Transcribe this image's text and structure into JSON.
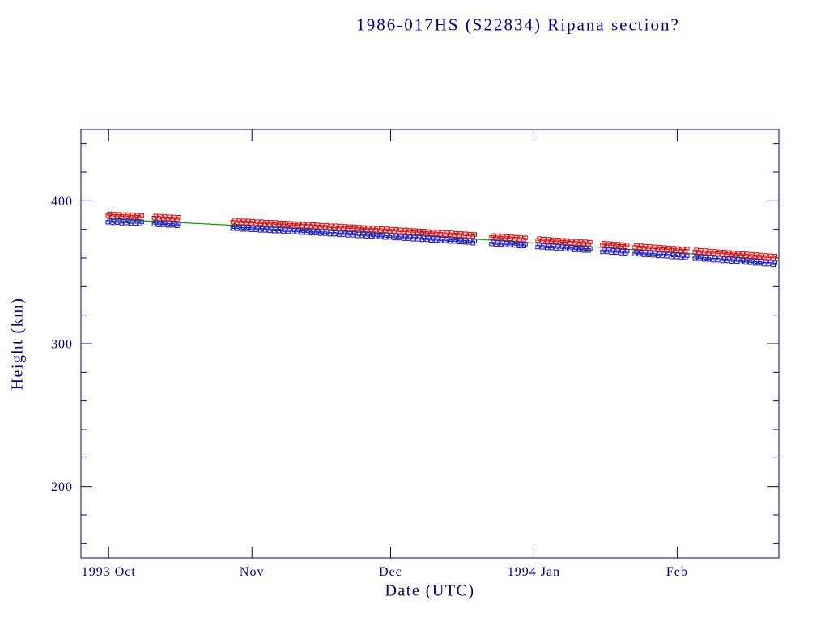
{
  "page": {
    "background": "#ffffff",
    "text_color": "#00008b"
  },
  "chart_data": {
    "type": "scatter",
    "title": "1986-017HS (S22834) Ripana section?",
    "xlabel": "Date (UTC)",
    "ylabel": "Height (km)",
    "x_axis": {
      "day0_date": "1993 Sep 25 (left edge of box)",
      "range_days": [
        0,
        151
      ],
      "ticks": [
        {
          "day": 6,
          "label": "1993 Oct"
        },
        {
          "day": 37,
          "label": "Nov"
        },
        {
          "day": 67,
          "label": "Dec"
        },
        {
          "day": 98,
          "label": "1994 Jan"
        },
        {
          "day": 129,
          "label": "Feb"
        }
      ]
    },
    "y_axis": {
      "range_km": [
        150,
        450
      ],
      "major_ticks": [
        200,
        300,
        400
      ],
      "minor_tick_step": 20
    },
    "colors": {
      "axis": "#00008b",
      "red_series": "#dd1111",
      "blue_series": "#2222cc",
      "trend": "#00aa00"
    },
    "series_meta": [
      {
        "name": "upper-height-series",
        "color_key": "red_series",
        "marker": "open-square"
      },
      {
        "name": "lower-height-series",
        "color_key": "blue_series",
        "marker": "open-square"
      }
    ],
    "points_per_day_spread_km": 1.4,
    "points": [
      [
        6,
        390.2,
        385.7
      ],
      [
        7,
        389.9,
        385.3
      ],
      [
        8,
        389.8,
        385.5
      ],
      [
        9,
        389.6,
        385.0
      ],
      [
        10,
        389.6,
        385.2
      ],
      [
        11,
        389.3,
        384.8
      ],
      [
        12,
        389.2,
        384.9
      ],
      [
        13,
        389.0,
        384.5
      ],
      [
        16,
        388.6,
        384.2
      ],
      [
        17,
        388.5,
        383.8
      ],
      [
        18,
        388.2,
        383.9
      ],
      [
        19,
        388.1,
        383.5
      ],
      [
        20,
        387.9,
        383.5
      ],
      [
        21,
        387.8,
        383.2
      ],
      [
        33,
        385.8,
        381.3
      ],
      [
        34,
        385.4,
        381.1
      ],
      [
        35,
        385.3,
        380.7
      ],
      [
        36,
        385.2,
        380.7
      ],
      [
        37,
        385.0,
        380.4
      ],
      [
        38,
        384.7,
        380.4
      ],
      [
        39,
        384.7,
        380.0
      ],
      [
        40,
        384.4,
        380.0
      ],
      [
        41,
        384.3,
        379.7
      ],
      [
        42,
        384.2,
        379.5
      ],
      [
        43,
        383.9,
        379.5
      ],
      [
        44,
        383.8,
        379.1
      ],
      [
        45,
        383.6,
        379.1
      ],
      [
        46,
        383.4,
        378.8
      ],
      [
        47,
        383.3,
        378.8
      ],
      [
        48,
        382.9,
        378.4
      ],
      [
        49,
        382.9,
        378.4
      ],
      [
        50,
        382.7,
        378.0
      ],
      [
        51,
        382.5,
        378.1
      ],
      [
        52,
        382.2,
        377.7
      ],
      [
        53,
        382.2,
        377.7
      ],
      [
        54,
        381.8,
        377.3
      ],
      [
        55,
        381.8,
        377.3
      ],
      [
        56,
        381.6,
        376.9
      ],
      [
        57,
        381.4,
        377.0
      ],
      [
        58,
        381.2,
        376.6
      ],
      [
        59,
        381.1,
        376.6
      ],
      [
        60,
        380.8,
        376.1
      ],
      [
        61,
        380.6,
        376.2
      ],
      [
        62,
        380.4,
        375.8
      ],
      [
        63,
        380.3,
        375.8
      ],
      [
        64,
        380.1,
        375.4
      ],
      [
        65,
        379.8,
        375.4
      ],
      [
        66,
        379.7,
        375.0
      ],
      [
        67,
        379.4,
        375.1
      ],
      [
        68,
        379.3,
        374.6
      ],
      [
        69,
        379.0,
        374.6
      ],
      [
        70,
        378.9,
        374.2
      ],
      [
        71,
        378.6,
        374.2
      ],
      [
        72,
        378.5,
        373.8
      ],
      [
        73,
        378.2,
        373.8
      ],
      [
        74,
        378.1,
        373.4
      ],
      [
        75,
        377.8,
        373.4
      ],
      [
        76,
        377.6,
        373.0
      ],
      [
        77,
        377.5,
        373.0
      ],
      [
        78,
        377.2,
        372.6
      ],
      [
        79,
        377.0,
        372.6
      ],
      [
        80,
        376.9,
        372.2
      ],
      [
        81,
        376.6,
        372.2
      ],
      [
        82,
        376.4,
        371.8
      ],
      [
        83,
        376.2,
        371.7
      ],
      [
        84,
        375.9,
        371.5
      ],
      [
        85,
        375.7,
        371.1
      ],
      [
        89,
        375.0,
        370.5
      ],
      [
        90,
        374.8,
        370.1
      ],
      [
        91,
        374.5,
        370.1
      ],
      [
        92,
        374.3,
        369.7
      ],
      [
        93,
        374.1,
        369.6
      ],
      [
        94,
        373.8,
        369.4
      ],
      [
        95,
        373.7,
        369.0
      ],
      [
        96,
        373.4,
        369.0
      ],
      [
        99,
        372.8,
        368.3
      ],
      [
        100,
        372.5,
        368.1
      ],
      [
        101,
        372.4,
        367.7
      ],
      [
        102,
        372.1,
        367.7
      ],
      [
        103,
        371.9,
        367.3
      ],
      [
        104,
        371.6,
        367.2
      ],
      [
        105,
        371.5,
        366.8
      ],
      [
        106,
        371.1,
        366.7
      ],
      [
        107,
        371.0,
        366.3
      ],
      [
        108,
        370.7,
        366.3
      ],
      [
        109,
        370.6,
        365.9
      ],
      [
        110,
        370.3,
        365.9
      ],
      [
        113,
        369.7,
        365.0
      ],
      [
        114,
        369.4,
        365.0
      ],
      [
        115,
        369.2,
        364.5
      ],
      [
        116,
        368.9,
        364.5
      ],
      [
        117,
        368.7,
        364.1
      ],
      [
        118,
        368.5,
        364.0
      ],
      [
        120,
        368.1,
        363.4
      ],
      [
        121,
        367.8,
        363.3
      ],
      [
        122,
        367.5,
        362.9
      ],
      [
        123,
        367.3,
        362.8
      ],
      [
        124,
        367.0,
        362.6
      ],
      [
        125,
        366.8,
        362.2
      ],
      [
        126,
        366.6,
        362.1
      ],
      [
        127,
        366.3,
        361.9
      ],
      [
        128,
        366.1,
        361.4
      ],
      [
        129,
        365.8,
        361.4
      ],
      [
        130,
        365.6,
        361.0
      ],
      [
        131,
        365.4,
        360.9
      ],
      [
        133,
        364.9,
        360.2
      ],
      [
        134,
        364.6,
        360.2
      ],
      [
        135,
        364.4,
        359.7
      ],
      [
        136,
        364.1,
        359.7
      ],
      [
        137,
        363.9,
        359.2
      ],
      [
        138,
        363.6,
        359.2
      ],
      [
        139,
        363.4,
        358.7
      ],
      [
        140,
        363.1,
        358.7
      ],
      [
        141,
        362.9,
        358.2
      ],
      [
        142,
        362.6,
        358.2
      ],
      [
        143,
        362.3,
        357.7
      ],
      [
        144,
        362.1,
        357.6
      ],
      [
        145,
        361.8,
        357.4
      ],
      [
        146,
        361.6,
        356.9
      ],
      [
        147,
        361.3,
        356.9
      ],
      [
        148,
        361.0,
        356.4
      ],
      [
        149,
        360.8,
        356.4
      ],
      [
        150,
        360.6,
        355.9
      ]
    ],
    "trend_line": [
      [
        6,
        387.1
      ],
      [
        16,
        385.6
      ],
      [
        26,
        384.0
      ],
      [
        36,
        382.3
      ],
      [
        46,
        380.6
      ],
      [
        56,
        378.8
      ],
      [
        66,
        376.9
      ],
      [
        76,
        375.0
      ],
      [
        86,
        373.0
      ],
      [
        96,
        370.9
      ],
      [
        106,
        368.8
      ],
      [
        116,
        366.6
      ],
      [
        126,
        364.3
      ],
      [
        136,
        361.9
      ],
      [
        146,
        359.5
      ],
      [
        151,
        358.2
      ]
    ]
  }
}
